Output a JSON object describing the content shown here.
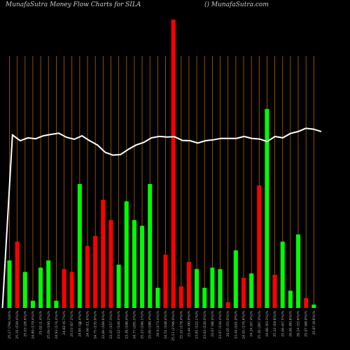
{
  "header": {
    "title_left": "MunafaSutra  Money Flow  Charts for SILA",
    "title_right": "() MunafaSutra.com"
  },
  "chart_data": {
    "type": "bar",
    "title": "MunafaSutra  Money Flow  Charts for SILA",
    "xlabel": "",
    "ylabel": "",
    "ylim": [
      0,
      100
    ],
    "grid": true,
    "categories": [
      "25.17 (794.%0)%",
      "25.31 (539.4%)%",
      "25.03 (28.6%)%",
      "24.89 (179.4%)%",
      "25.02 (1.4%)%",
      "25.09 (190.2%)%",
      "24.93 (174.4%)%",
      "24.82 (6.7%)%",
      "25.03 (67.2%)%",
      "24.85 (76.4%)%",
      "24.66 (11.6%)%",
      "24.75 (135.9%)%",
      "22.66 (166.6%)%",
      "22.25 (157.3%)%",
      "23.12 (146.4%)%",
      "23.39 (198.4%)%",
      "24.77 (205.5%)%",
      "25.23 (166.1%)%",
      "25.09 (188.4%)%",
      "24.9 (173.4%)%",
      "24.51 (108.4%)%",
      "25.13 (2796.0%)%",
      "25.22 (178.4%)%",
      "23.44 (90.9%)%",
      "23.81 (122.1%)%",
      "23.63 (128.0%)%",
      "23.67 (98.4%)%",
      "23.67 (144.4%)%",
      "24.05 (55.0%)%",
      "23.44 (161.9%)%",
      "24.05 (176.6%)%",
      "24.24 (97.4%)%",
      "25.26 (287.0%)%",
      "24.86 (93.3%)%",
      "25.42 (18.8%)%",
      "25.66 (67.5%)%",
      "26.66 (80.8%)%",
      "26.14 (33.6%)%",
      "25.97 (68.9%)%",
      "25.87 (9.8%)%"
    ],
    "series": [
      {
        "values": [
          16.5,
          23,
          12.5,
          2.5,
          14,
          16.5,
          2.5,
          13.5,
          12.5,
          43,
          21.5,
          25,
          37.5,
          30.5,
          15,
          37,
          30.5,
          28.5,
          43,
          7,
          18.5,
          100,
          7.5,
          16,
          13.5,
          7,
          14,
          13.5,
          2,
          20,
          10.5,
          12,
          42.5,
          69,
          11.5,
          23,
          6,
          25.5,
          3.5,
          1.2
        ],
        "colors": [
          "green",
          "red",
          "green",
          "green",
          "green",
          "green",
          "green",
          "red",
          "red",
          "green",
          "red",
          "red",
          "red",
          "red",
          "green",
          "green",
          "green",
          "green",
          "green",
          "green",
          "red",
          "red",
          "red",
          "red",
          "green",
          "green",
          "green",
          "green",
          "red",
          "green",
          "red",
          "green",
          "red",
          "green",
          "red",
          "green",
          "green",
          "green",
          "red",
          "green"
        ]
      },
      {
        "values": [
          0,
          60,
          58,
          59,
          58.7,
          59.7,
          60.2,
          60.6,
          59.2,
          58.5,
          59.7,
          58,
          56.5,
          54,
          53,
          53.2,
          55,
          56.5,
          57.4,
          59,
          59.5,
          59.3,
          59.4,
          58.1,
          58,
          57.2,
          58,
          58.3,
          58.8,
          58.8,
          58.8,
          59.5,
          58.8,
          58.6,
          57.7,
          59.5,
          59,
          60.5,
          61.2,
          62.3,
          62,
          61.2
        ],
        "x": [
          0,
          1.3,
          2.3,
          3.3,
          4.3,
          5.3,
          6.3,
          7.3,
          8.3,
          9.3,
          10.3,
          11.3,
          12.3,
          13.3,
          14.3,
          15.3,
          16.3,
          17.3,
          18.3,
          19.3,
          20.3,
          21.3,
          22.3,
          23.3,
          24.3,
          25.3,
          26.3,
          27.3,
          28.3,
          29.3,
          30.3,
          31.3,
          32.3,
          33.3,
          34.3,
          35.3,
          36.3,
          37.3,
          38.3,
          39.3,
          40.3,
          41.3
        ]
      }
    ],
    "colors": {
      "green": "#00ff00",
      "red": "#ff0000",
      "grid": "#b36200",
      "line": "#ffffff"
    },
    "footer_mark": "$"
  }
}
